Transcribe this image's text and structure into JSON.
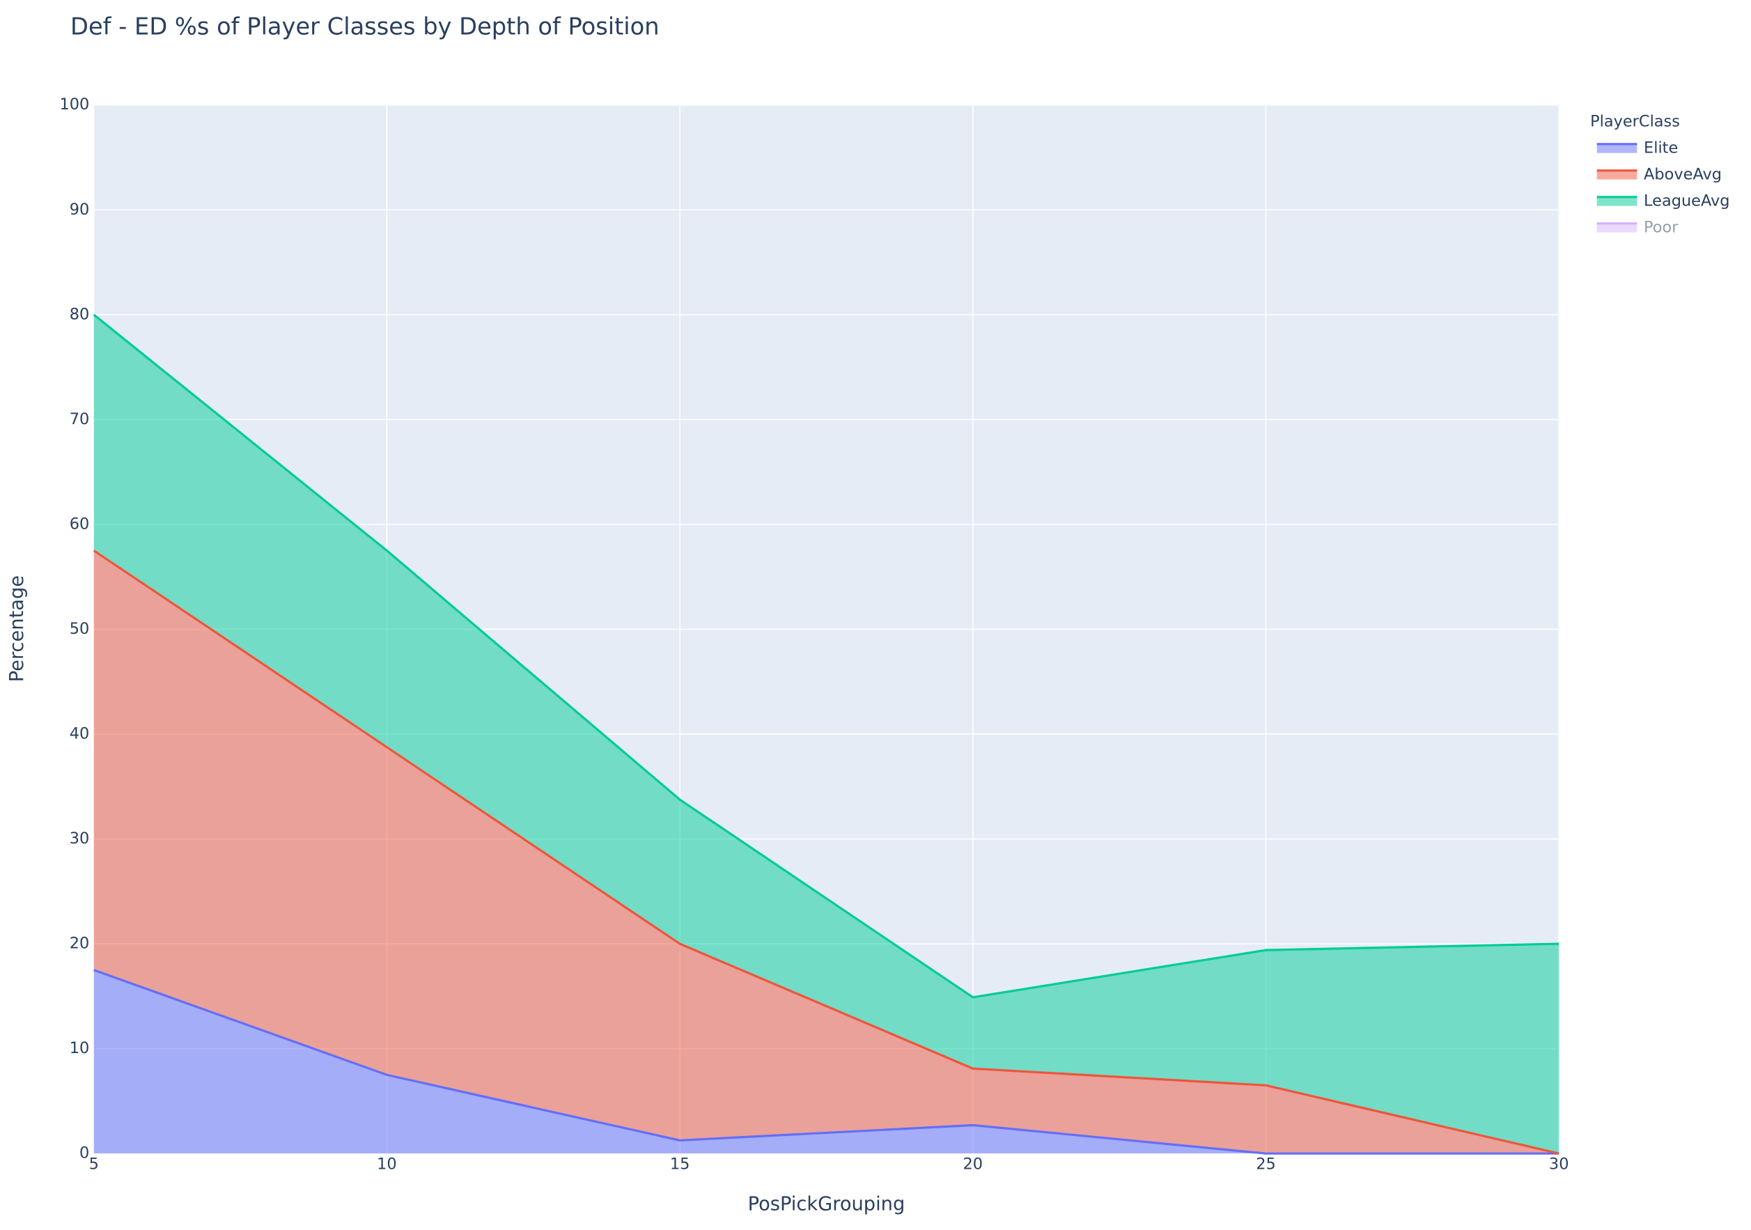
{
  "chart_data": {
    "type": "stacked-area",
    "title": "Def - ED %s of Player Classes by Depth of Position",
    "x_label": "PosPickGrouping",
    "y_label": "Percentage",
    "x": [
      5,
      10,
      15,
      20,
      25,
      30
    ],
    "xlim": [
      5,
      30
    ],
    "xticks": [
      5,
      10,
      15,
      20,
      25,
      30
    ],
    "ylim": [
      0,
      100
    ],
    "yticks": [
      0,
      10,
      20,
      30,
      40,
      50,
      60,
      70,
      80,
      90,
      100
    ],
    "grid": true,
    "background": "#e5ecf6",
    "legend_title": "PlayerClass",
    "legend_position": "right",
    "series": [
      {
        "name": "Elite",
        "color": "#636efa",
        "values": [
          17.5,
          7.5,
          1.25,
          2.7,
          0,
          0
        ]
      },
      {
        "name": "AboveAvg",
        "color": "#ef553b",
        "values": [
          40,
          31.25,
          18.75,
          5.4,
          6.5,
          0
        ]
      },
      {
        "name": "LeagueAvg",
        "color": "#00cc96",
        "values": [
          22.5,
          18.75,
          13.75,
          6.8,
          12.9,
          20
        ]
      },
      {
        "name": "Poor",
        "color": "#ab63fa",
        "visible": false
      }
    ]
  }
}
